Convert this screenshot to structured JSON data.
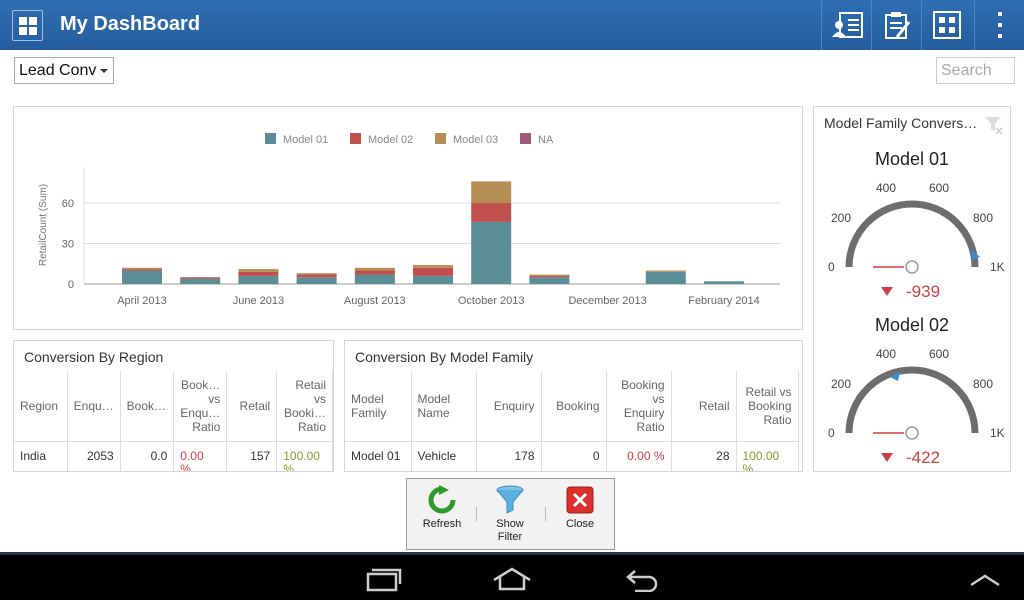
{
  "app": {
    "title": "My DashBoard"
  },
  "toolbar": {
    "selected": "Lead Conv",
    "search_placeholder": "Search"
  },
  "chart_data": {
    "type": "bar",
    "stacked": true,
    "ylabel": "RetailCount (Sum)",
    "xlabel": "",
    "ylim": [
      0,
      80
    ],
    "yticks": [
      0,
      30,
      60
    ],
    "legend_position": "top",
    "x_tick_labels": [
      "April 2013",
      "June 2013",
      "August 2013",
      "October 2013",
      "December 2013",
      "February 2014"
    ],
    "categories": [
      "Apr 2013",
      "May 2013",
      "Jun 2013",
      "Jul 2013",
      "Aug 2013",
      "Sep 2013",
      "Oct 2013",
      "Nov 2013",
      "Dec 2013",
      "Jan 2014",
      "Feb 2014"
    ],
    "series": [
      {
        "name": "Model 01",
        "color": "#5b8e96",
        "values": [
          10,
          4,
          6,
          5,
          7,
          6,
          46,
          5,
          0,
          9,
          2
        ]
      },
      {
        "name": "Model 02",
        "color": "#c0504d",
        "values": [
          1,
          1,
          3,
          2,
          3,
          6,
          14,
          1,
          0,
          0,
          0
        ]
      },
      {
        "name": "Model 03",
        "color": "#b48e55",
        "values": [
          1,
          0,
          2,
          1,
          2,
          2,
          16,
          1,
          0,
          1,
          0
        ]
      },
      {
        "name": "NA",
        "color": "#9e5a78",
        "values": [
          0,
          0,
          0,
          0,
          0,
          0,
          0,
          0,
          0,
          0,
          0
        ]
      }
    ]
  },
  "region_table": {
    "title": "Conversion By Region",
    "headers": [
      "Region",
      "Enqu…",
      "Book…",
      "Book…\nvs\nEnqu…\nRatio",
      "Retail",
      "Retail\nvs\nBooki…\nRatio"
    ],
    "rows": [
      [
        "India",
        "2053",
        "0.0",
        "0.00\n%",
        "157",
        "100.00\n%"
      ]
    ]
  },
  "model_table": {
    "title": "Conversion By Model Family",
    "headers": [
      "Model\nFamily",
      "Model\nName",
      "Enquiry",
      "Booking",
      "Booking\nvs\nEnquiry\nRatio",
      "Retail",
      "Retail vs\nBooking\nRatio"
    ],
    "rows": [
      [
        "Model 01",
        "Vehicle",
        "178",
        "0",
        "0.00 %",
        "28",
        "100.00\n%"
      ]
    ]
  },
  "gauges": {
    "title": "Model Family Convers…",
    "items": [
      {
        "name": "Model 01",
        "value": "-939",
        "ticks": [
          "0",
          "200",
          "400",
          "600",
          "800",
          "1K"
        ]
      },
      {
        "name": "Model 02",
        "value": "-422",
        "ticks": [
          "0",
          "200",
          "400",
          "600",
          "800",
          "1K"
        ]
      }
    ]
  },
  "popup": {
    "refresh": "Refresh",
    "show_filter_1": "Show",
    "show_filter_2": "Filter",
    "close": "Close"
  }
}
